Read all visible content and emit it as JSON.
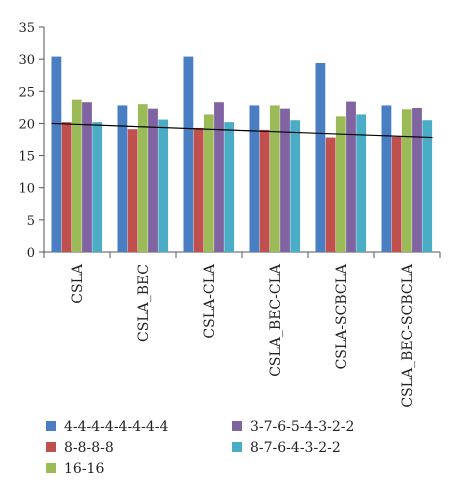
{
  "chart_data": {
    "type": "bar",
    "title": "",
    "xlabel": "",
    "ylabel": "",
    "ylim": [
      0,
      35
    ],
    "yticks": [
      0,
      5,
      10,
      15,
      20,
      25,
      30,
      35
    ],
    "grid": false,
    "legend_position": "bottom",
    "categories": [
      "CSLA",
      "CSLA_BEC",
      "CSLA-CLA",
      "CSLA_BEC-CLA",
      "CSLA-SCBCLA",
      "CSLA_BEC-SCBCLA"
    ],
    "series": [
      {
        "name": "4-4-4-4-4-4-4-4",
        "color": "#4a7ec3",
        "values": [
          30.4,
          22.8,
          30.4,
          22.8,
          29.4,
          22.8
        ]
      },
      {
        "name": "8-8-8-8",
        "color": "#c0504d",
        "values": [
          20.2,
          19.1,
          19.3,
          19.0,
          17.8,
          17.9
        ]
      },
      {
        "name": "16-16",
        "color": "#9bbb59",
        "values": [
          23.7,
          23.0,
          21.4,
          22.8,
          21.1,
          22.2
        ]
      },
      {
        "name": "3-7-6-5-4-3-2-2",
        "color": "#8064a2",
        "values": [
          23.3,
          22.3,
          23.3,
          22.3,
          23.4,
          22.4
        ]
      },
      {
        "name": "8-7-6-4-3-2-2",
        "color": "#4bacc6",
        "values": [
          20.2,
          20.6,
          20.2,
          20.5,
          21.4,
          20.5
        ]
      }
    ],
    "trendline": {
      "color": "#000000",
      "x": [
        "CSLA",
        "CSLA_BEC-SCBCLA"
      ],
      "y": [
        20.0,
        17.8
      ]
    }
  }
}
